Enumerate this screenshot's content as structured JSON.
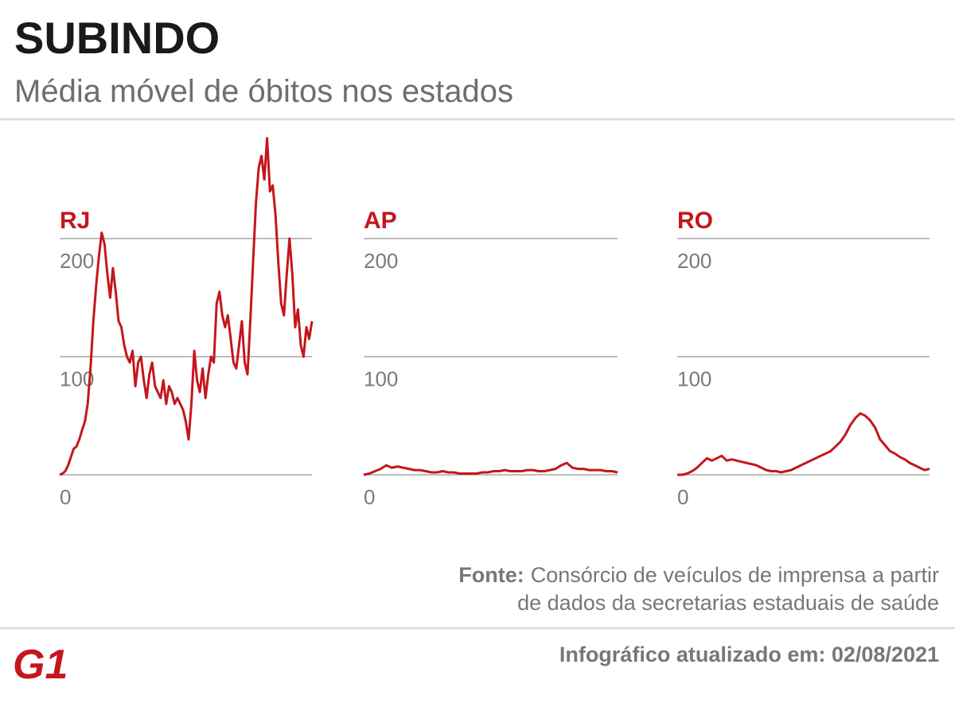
{
  "title": "SUBINDO",
  "subtitle": "Média móvel de óbitos nos estados",
  "source_label": "Fonte:",
  "source": [
    "Consórcio de veículos de imprensa a partir",
    "de dados da secretarias estaduais de saúde"
  ],
  "updated": "Infográfico atualizado em: 02/08/2021",
  "logo": "G1",
  "chart_data": [
    {
      "type": "line",
      "title": "RJ",
      "color": "#c4161c",
      "ylim": [
        0,
        200
      ],
      "yticks": [
        0,
        100,
        200
      ],
      "grid": true,
      "values": [
        0,
        1,
        3,
        8,
        15,
        22,
        24,
        30,
        38,
        45,
        60,
        90,
        130,
        160,
        185,
        205,
        195,
        170,
        150,
        175,
        155,
        130,
        125,
        110,
        100,
        95,
        105,
        75,
        95,
        100,
        80,
        65,
        85,
        95,
        75,
        70,
        65,
        80,
        60,
        75,
        70,
        60,
        65,
        60,
        55,
        45,
        30,
        60,
        105,
        80,
        70,
        90,
        65,
        85,
        100,
        95,
        145,
        155,
        135,
        125,
        135,
        115,
        95,
        90,
        110,
        130,
        95,
        85,
        130,
        180,
        230,
        260,
        270,
        250,
        285,
        240,
        245,
        220,
        180,
        145,
        135,
        170,
        200,
        170,
        125,
        140,
        110,
        100,
        125,
        115,
        130
      ]
    },
    {
      "type": "line",
      "title": "AP",
      "color": "#c4161c",
      "ylim": [
        0,
        200
      ],
      "yticks": [
        0,
        100,
        200
      ],
      "grid": true,
      "values": [
        0,
        1,
        3,
        5,
        8,
        6,
        7,
        6,
        5,
        4,
        4,
        3,
        2,
        2,
        3,
        2,
        2,
        1,
        1,
        1,
        1,
        2,
        2,
        3,
        3,
        4,
        3,
        3,
        3,
        4,
        4,
        3,
        3,
        4,
        5,
        8,
        10,
        6,
        5,
        5,
        4,
        4,
        4,
        3,
        3,
        2
      ]
    },
    {
      "type": "line",
      "title": "RO",
      "color": "#c4161c",
      "ylim": [
        0,
        200
      ],
      "yticks": [
        0,
        100,
        200
      ],
      "grid": true,
      "values": [
        0,
        0,
        1,
        3,
        6,
        10,
        14,
        12,
        14,
        16,
        12,
        13,
        12,
        11,
        10,
        9,
        8,
        6,
        4,
        3,
        3,
        2,
        3,
        4,
        6,
        8,
        10,
        12,
        14,
        16,
        18,
        20,
        24,
        28,
        34,
        42,
        48,
        52,
        50,
        46,
        40,
        30,
        25,
        20,
        18,
        15,
        13,
        10,
        8,
        6,
        4,
        5
      ]
    }
  ]
}
